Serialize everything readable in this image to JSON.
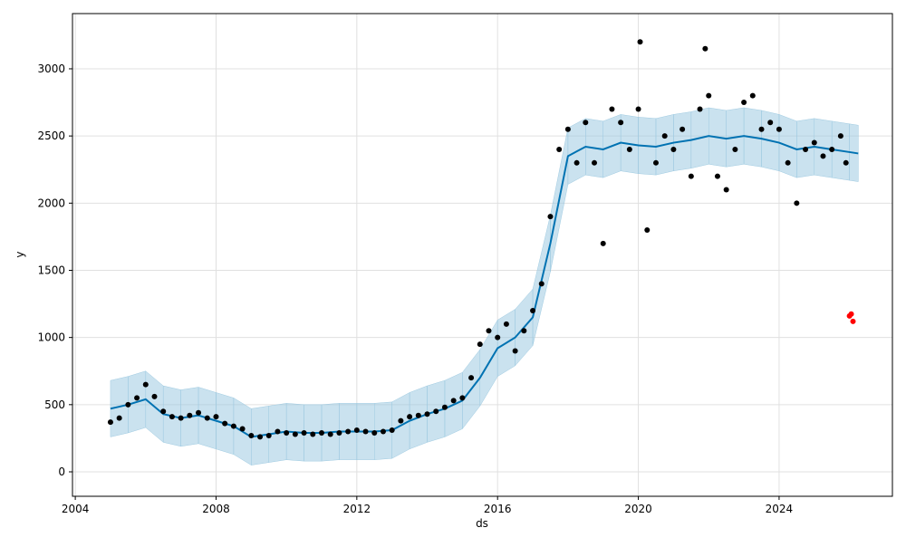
{
  "chart_data": {
    "type": "line",
    "xlabel": "ds",
    "ylabel": "y",
    "xlim": [
      2003.92,
      2027.22
    ],
    "ylim": [
      -182,
      3411
    ],
    "xticks": [
      2004,
      2008,
      2012,
      2016,
      2020,
      2024
    ],
    "yticks": [
      0,
      500,
      1000,
      1500,
      2000,
      2500,
      3000
    ],
    "grid": true,
    "series": [
      {
        "color": "#000000",
        "marker": "dot",
        "x": [
          2005.0,
          2005.25,
          2005.5,
          2005.75,
          2006.0,
          2006.25,
          2006.5,
          2006.75,
          2007.0,
          2007.25,
          2007.5,
          2007.75,
          2008.0,
          2008.25,
          2008.5,
          2008.75,
          2009.0,
          2009.25,
          2009.5,
          2009.75,
          2010.0,
          2010.25,
          2010.5,
          2010.75,
          2011.0,
          2011.25,
          2011.5,
          2011.75,
          2012.0,
          2012.25,
          2012.5,
          2012.75,
          2013.0,
          2013.25,
          2013.5,
          2013.75,
          2014.0,
          2014.25,
          2014.5,
          2014.75,
          2015.0,
          2015.25,
          2015.5,
          2015.75,
          2016.0,
          2016.25,
          2016.5,
          2016.75,
          2017.0,
          2017.25,
          2017.5,
          2017.75,
          2018.0,
          2018.25,
          2018.5,
          2018.75,
          2019.0,
          2019.25,
          2019.5,
          2019.75,
          2020.0,
          2020.05,
          2020.25,
          2020.5,
          2020.75,
          2021.0,
          2021.25,
          2021.5,
          2021.75,
          2021.9,
          2022.0,
          2022.25,
          2022.5,
          2022.75,
          2023.0,
          2023.25,
          2023.5,
          2023.75,
          2024.0,
          2024.25,
          2024.5,
          2024.75,
          2025.0,
          2025.25,
          2025.5,
          2025.75,
          2025.9
        ],
        "values": [
          370,
          400,
          500,
          550,
          650,
          560,
          450,
          410,
          400,
          420,
          440,
          400,
          410,
          360,
          340,
          320,
          270,
          260,
          270,
          300,
          290,
          280,
          290,
          280,
          290,
          280,
          290,
          300,
          310,
          300,
          290,
          300,
          310,
          380,
          410,
          420,
          430,
          450,
          480,
          530,
          550,
          700,
          950,
          1050,
          1000,
          1100,
          900,
          1050,
          1200,
          1400,
          1900,
          2400,
          2550,
          2300,
          2600,
          2300,
          1700,
          2700,
          2600,
          2400,
          2700,
          3200,
          1800,
          2300,
          2500,
          2400,
          2550,
          2200,
          2700,
          3150,
          2800,
          2200,
          2100,
          2400,
          2750,
          2800,
          2550,
          2600,
          2550,
          2300,
          2000,
          2400,
          2450,
          2350,
          2400,
          2500,
          2300
        ]
      },
      {
        "color": "#0072b2",
        "band_color": "#9ecae1",
        "x": [
          2005.0,
          2005.5,
          2006.0,
          2006.5,
          2007.0,
          2007.5,
          2008.0,
          2008.5,
          2009.0,
          2009.5,
          2010.0,
          2010.5,
          2011.0,
          2011.5,
          2012.0,
          2012.5,
          2013.0,
          2013.5,
          2014.0,
          2014.5,
          2015.0,
          2015.5,
          2016.0,
          2016.5,
          2017.0,
          2017.5,
          2018.0,
          2018.5,
          2019.0,
          2019.5,
          2020.0,
          2020.5,
          2021.0,
          2021.5,
          2022.0,
          2022.5,
          2023.0,
          2023.5,
          2024.0,
          2024.5,
          2025.0,
          2025.5,
          2026.0,
          2026.25
        ],
        "values": [
          470,
          500,
          540,
          430,
          400,
          420,
          380,
          340,
          260,
          280,
          300,
          290,
          290,
          300,
          300,
          300,
          310,
          380,
          430,
          470,
          530,
          700,
          920,
          1000,
          1150,
          1700,
          2350,
          2420,
          2400,
          2450,
          2430,
          2420,
          2450,
          2470,
          2500,
          2480,
          2500,
          2480,
          2450,
          2400,
          2420,
          2400,
          2380,
          2370
        ],
        "lower": [
          260,
          290,
          330,
          220,
          190,
          210,
          170,
          130,
          50,
          70,
          90,
          80,
          80,
          90,
          90,
          90,
          100,
          170,
          220,
          260,
          320,
          490,
          710,
          790,
          940,
          1490,
          2140,
          2210,
          2190,
          2240,
          2220,
          2210,
          2240,
          2260,
          2290,
          2270,
          2290,
          2270,
          2240,
          2190,
          2210,
          2190,
          2170,
          2160
        ],
        "upper": [
          680,
          710,
          750,
          640,
          610,
          630,
          590,
          550,
          470,
          490,
          510,
          500,
          500,
          510,
          510,
          510,
          520,
          590,
          640,
          680,
          740,
          910,
          1130,
          1210,
          1360,
          1910,
          2560,
          2630,
          2610,
          2660,
          2640,
          2630,
          2660,
          2680,
          2710,
          2690,
          2710,
          2690,
          2660,
          2610,
          2630,
          2610,
          2590,
          2580
        ]
      },
      {
        "color": "#ff0000",
        "marker": "dot",
        "x": [
          2026.0,
          2026.05,
          2026.1
        ],
        "values": [
          1160,
          1175,
          1120
        ]
      }
    ]
  }
}
